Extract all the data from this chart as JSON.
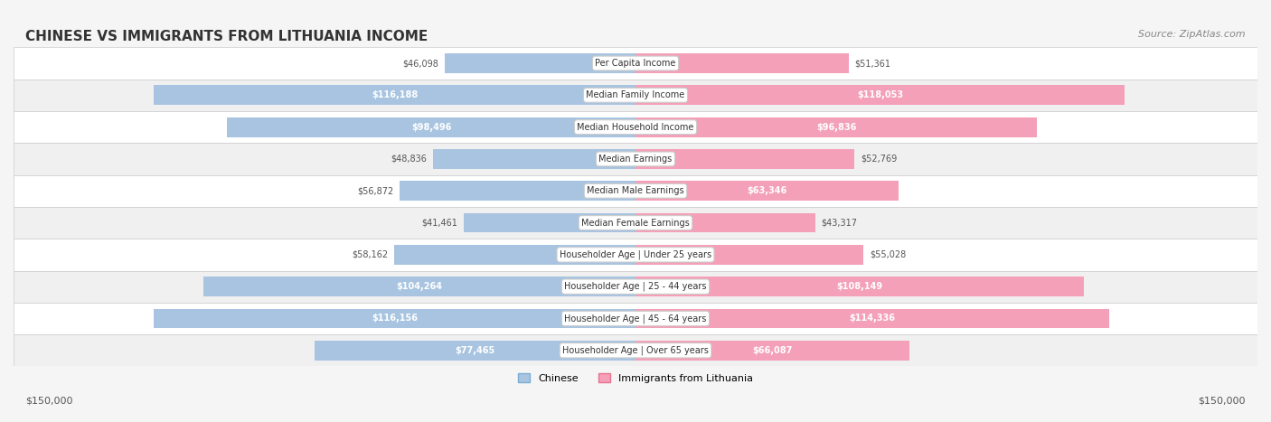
{
  "title": "CHINESE VS IMMIGRANTS FROM LITHUANIA INCOME",
  "source": "Source: ZipAtlas.com",
  "categories": [
    "Per Capita Income",
    "Median Family Income",
    "Median Household Income",
    "Median Earnings",
    "Median Male Earnings",
    "Median Female Earnings",
    "Householder Age | Under 25 years",
    "Householder Age | 25 - 44 years",
    "Householder Age | 45 - 64 years",
    "Householder Age | Over 65 years"
  ],
  "chinese_values": [
    46098,
    116188,
    98496,
    48836,
    56872,
    41461,
    58162,
    104264,
    116156,
    77465
  ],
  "lithuania_values": [
    51361,
    118053,
    96836,
    52769,
    63346,
    43317,
    55028,
    108149,
    114336,
    66087
  ],
  "chinese_labels": [
    "$46,098",
    "$116,188",
    "$98,496",
    "$48,836",
    "$56,872",
    "$41,461",
    "$58,162",
    "$104,264",
    "$116,156",
    "$77,465"
  ],
  "lithuania_labels": [
    "$51,361",
    "$118,053",
    "$96,836",
    "$52,769",
    "$63,346",
    "$43,317",
    "$55,028",
    "$108,149",
    "$114,336",
    "$66,087"
  ],
  "chinese_color": "#a8c4e0",
  "chinese_color_dark": "#7bafd4",
  "lithuania_color": "#f4a0b8",
  "lithuania_color_dark": "#e8728f",
  "max_value": 150000,
  "bottom_label_left": "$150,000",
  "bottom_label_right": "$150,000",
  "legend_chinese": "Chinese",
  "legend_lithuania": "Immigrants from Lithuania",
  "background_color": "#f5f5f5",
  "row_bg_color": "#ffffff",
  "row_alt_bg_color": "#f0f0f0"
}
